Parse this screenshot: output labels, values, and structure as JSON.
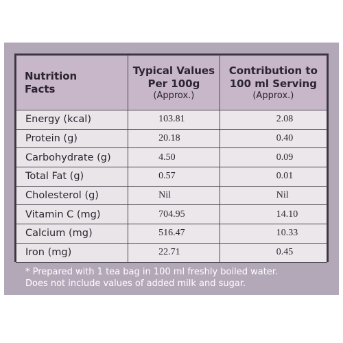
{
  "header": {
    "col1_line1": "Nutrition",
    "col1_line2": "Facts",
    "col2_line1": "Typical Values",
    "col2_line2": "Per 100g",
    "col2_approx": "(Approx.)",
    "col3_line1": "Contribution to",
    "col3_line2": "100 ml Serving",
    "col3_approx": "(Approx.)"
  },
  "rows": [
    {
      "name": "Energy (kcal)",
      "per100g": "103.81",
      "serving": "2.08"
    },
    {
      "name": "Protein (g)",
      "per100g": "20.18",
      "serving": "0.40"
    },
    {
      "name": "Carbohydrate (g)",
      "per100g": "4.50",
      "serving": "0.09"
    },
    {
      "name": "Total Fat (g)",
      "per100g": "0.57",
      "serving": "0.01"
    },
    {
      "name": "Cholesterol (g)",
      "per100g": "Nil",
      "serving": "Nil"
    },
    {
      "name": "Vitamin C (mg)",
      "per100g": "704.95",
      "serving": "14.10"
    },
    {
      "name": "Calcium (mg)",
      "per100g": "516.47",
      "serving": "10.33"
    },
    {
      "name": "Iron (mg)",
      "per100g": "22.71",
      "serving": "0.45"
    }
  ],
  "footnote": {
    "line1": "* Prepared with 1 tea bag in 100 ml freshly boiled water.",
    "line2": "Does not include values of added milk and sugar."
  }
}
